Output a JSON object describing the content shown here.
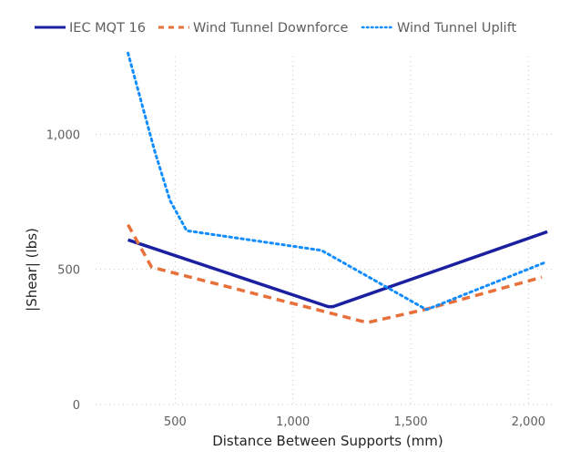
{
  "chart_data": {
    "type": "line",
    "title": "",
    "xlabel": "Distance Between Supports (mm)",
    "ylabel": "|Shear| (lbs)",
    "xlim": [
      0,
      2100
    ],
    "ylim": [
      0,
      1300
    ],
    "x_ticks": [
      500,
      1000,
      1500,
      2000
    ],
    "x_tick_labels": [
      "500",
      "1,000",
      "1,500",
      "2,000"
    ],
    "y_ticks": [
      0,
      500,
      1000
    ],
    "y_tick_labels": [
      "0",
      "500",
      "1,000"
    ],
    "grid": true,
    "legend_position": "top",
    "series": [
      {
        "name": "IEC MQT 16",
        "color": "#1a20a0",
        "style": "solid",
        "x": [
          300,
          1150,
          1170,
          2080
        ],
        "y": [
          609,
          362,
          362,
          639
        ]
      },
      {
        "name": "Wind Tunnel Downforce",
        "color": "#e8703a",
        "style": "dashed",
        "x": [
          300,
          400,
          1316,
          1567,
          2057
        ],
        "y": [
          665,
          508,
          303,
          353,
          471
        ]
      },
      {
        "name": "Wind Tunnel Uplift",
        "color": "#118dff",
        "style": "dotted",
        "x": [
          300,
          414,
          478,
          549,
          1122,
          1567,
          2069
        ],
        "y": [
          1300,
          935,
          755,
          643,
          570,
          351,
          525
        ]
      }
    ]
  }
}
